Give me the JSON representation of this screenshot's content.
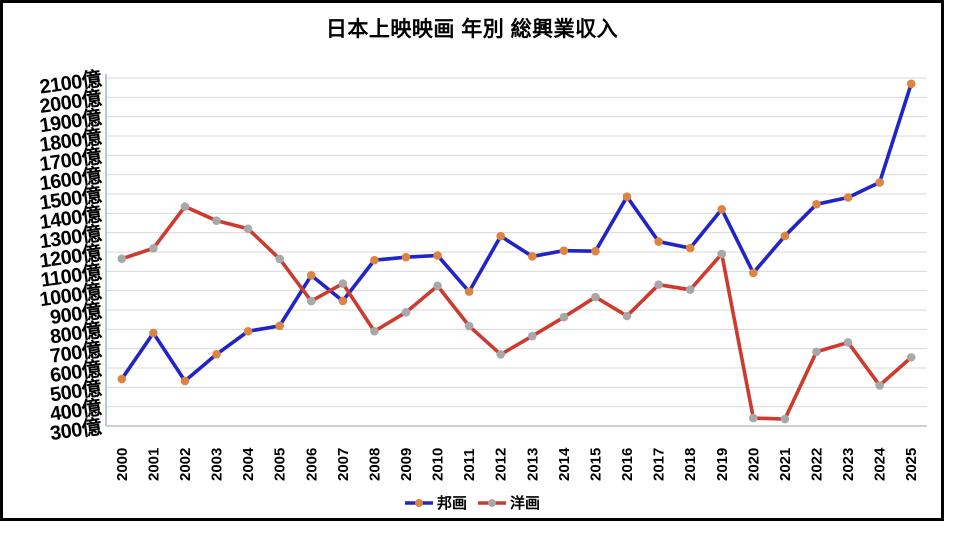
{
  "chart_data": {
    "type": "line",
    "title": "日本上映映画 年別 総興業収入",
    "xlabel": "",
    "ylabel": "",
    "x": [
      "2000",
      "2001",
      "2002",
      "2003",
      "2004",
      "2005",
      "2006",
      "2007",
      "2008",
      "2009",
      "2010",
      "2011",
      "2012",
      "2013",
      "2014",
      "2015",
      "2016",
      "2017",
      "2018",
      "2019",
      "2020",
      "2021",
      "2022",
      "2023",
      "2024",
      "2025"
    ],
    "series": [
      {
        "name": "邦画",
        "color": "#2124C8",
        "marker_color": "#DD8440",
        "values": [
          543,
          781,
          533,
          671,
          790,
          818,
          1079,
          947,
          1158,
          1173,
          1182,
          995,
          1282,
          1177,
          1207,
          1204,
          1486,
          1254,
          1220,
          1421,
          1092,
          1283,
          1447,
          1482,
          1560,
          2070
        ]
      },
      {
        "name": "洋画",
        "color": "#CE3A2E",
        "marker_color": "#A8A8A8",
        "values": [
          1165,
          1219,
          1435,
          1362,
          1320,
          1164,
          946,
          1037,
          790,
          888,
          1025,
          817,
          670,
          765,
          863,
          967,
          869,
          1031,
          1005,
          1190,
          341,
          336,
          684,
          732,
          510,
          655
        ]
      }
    ],
    "ylim": [
      300,
      2100
    ],
    "ytick_step": 100,
    "ytick_suffix": "億",
    "ytick_labels": [
      "300億",
      "400億",
      "500億",
      "600億",
      "700億",
      "800億",
      "900億",
      "1000億",
      "1100億",
      "1200億",
      "1300億",
      "1400億",
      "1500億",
      "1600億",
      "1700億",
      "1800億",
      "1900億",
      "2000億",
      "2100億"
    ],
    "grid": true,
    "legend_position": "bottom",
    "colors": {
      "grid": "#D9D9D9",
      "bottom_axis": "#BFBFBF",
      "y_axis": "#A6B9D4",
      "frame": "#000000",
      "background": "#FFFFFF",
      "text": "#000000"
    }
  }
}
